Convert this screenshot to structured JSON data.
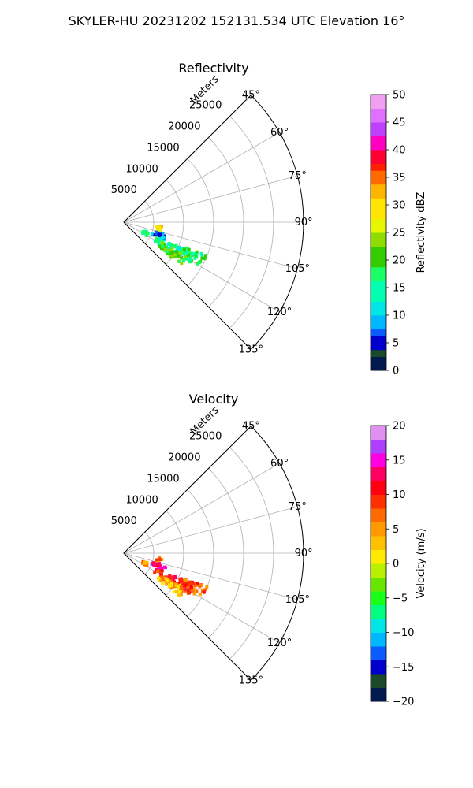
{
  "figure": {
    "suptitle": "SKYLER-HU  20231202  152131.534 UTC Elevation 16°"
  },
  "chart_data": [
    {
      "type": "heatmap",
      "title": "Reflectivity",
      "radial_label": "Meters",
      "radial_ticks": [
        "5000",
        "10000",
        "15000",
        "20000",
        "25000"
      ],
      "radial_range": [
        0,
        30000
      ],
      "angle_ticks": [
        "45°",
        "60°",
        "75°",
        "90°",
        "105°",
        "120°",
        "135°"
      ],
      "angle_range": [
        45,
        135
      ],
      "grid": true,
      "colorbar": {
        "label": "Reflectivity dBZ",
        "range": [
          0,
          50
        ],
        "ticks": [
          "0",
          "5",
          "10",
          "15",
          "20",
          "25",
          "30",
          "35",
          "40",
          "45",
          "50"
        ]
      },
      "echo_clusters": [
        {
          "azimuth_deg": 100,
          "range_m": [
            5500,
            6500
          ],
          "value": 30
        },
        {
          "azimuth_deg": 110,
          "range_m": [
            5000,
            7500
          ],
          "value": 8
        },
        {
          "azimuth_deg": 116,
          "range_m": [
            3500,
            4500
          ],
          "value": 15
        },
        {
          "azimuth_deg": 118,
          "range_m": [
            6000,
            13000
          ],
          "value": 15
        },
        {
          "azimuth_deg": 122,
          "range_m": [
            7000,
            12000
          ],
          "value": 21
        },
        {
          "azimuth_deg": 116,
          "range_m": [
            11000,
            15000
          ],
          "value": 17
        }
      ]
    },
    {
      "type": "heatmap",
      "title": "Velocity",
      "radial_label": "Meters",
      "radial_ticks": [
        "5000",
        "10000",
        "15000",
        "20000",
        "25000"
      ],
      "radial_range": [
        0,
        30000
      ],
      "angle_ticks": [
        "45°",
        "60°",
        "75°",
        "90°",
        "105°",
        "120°",
        "135°"
      ],
      "angle_range": [
        45,
        135
      ],
      "grid": true,
      "colorbar": {
        "label": "Velocity (m/s)",
        "range": [
          -20,
          20
        ],
        "ticks": [
          "−20",
          "−15",
          "−10",
          "−5",
          "0",
          "5",
          "10",
          "15",
          "20"
        ]
      },
      "echo_clusters": [
        {
          "azimuth_deg": 100,
          "range_m": [
            5500,
            6500
          ],
          "value": 6
        },
        {
          "azimuth_deg": 110,
          "range_m": [
            5000,
            7500
          ],
          "value": 14
        },
        {
          "azimuth_deg": 116,
          "range_m": [
            3500,
            4500
          ],
          "value": 5
        },
        {
          "azimuth_deg": 118,
          "range_m": [
            6000,
            13000
          ],
          "value": 10
        },
        {
          "azimuth_deg": 124,
          "range_m": [
            7000,
            12000
          ],
          "value": 4
        },
        {
          "azimuth_deg": 116,
          "range_m": [
            11000,
            15000
          ],
          "value": 8
        }
      ]
    }
  ]
}
